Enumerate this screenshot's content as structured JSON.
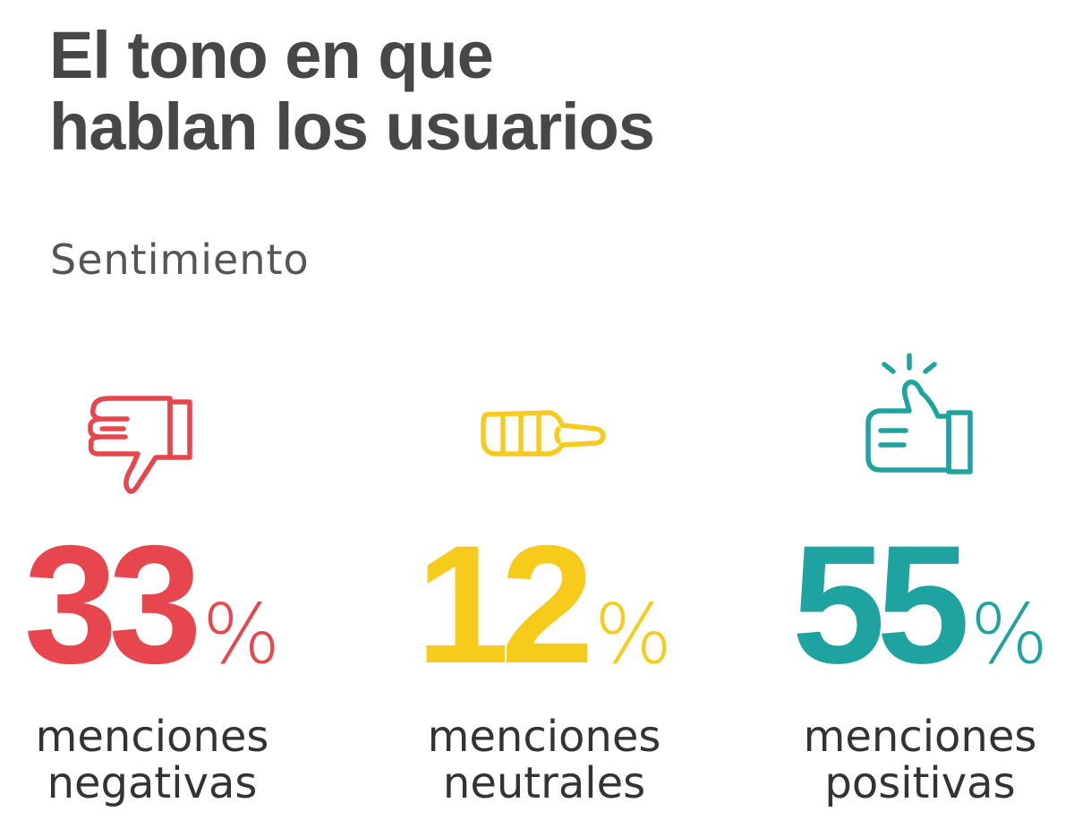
{
  "title": [
    "El tono en que",
    "hablan los usuarios"
  ],
  "subtitle": "Sentimiento",
  "chart_data": {
    "type": "table",
    "title": "El tono en que hablan los usuarios",
    "subtitle": "Sentimiento",
    "categories": [
      "negativas",
      "neutrales",
      "positivas"
    ],
    "series": [
      {
        "values": [
          33,
          12,
          55
        ]
      }
    ],
    "items": [
      {
        "id": "negative",
        "icon": "thumbs-down-icon",
        "value": 33,
        "value_text": "33",
        "unit": "%",
        "label_line1": "menciones",
        "label_line2": "negativas",
        "color": "#e8464f"
      },
      {
        "id": "neutral",
        "icon": "thumbs-sideways-icon",
        "value": 12,
        "value_text": "12",
        "unit": "%",
        "label_line1": "menciones",
        "label_line2": "neutrales",
        "color": "#f7cb1c"
      },
      {
        "id": "positive",
        "icon": "thumbs-up-icon",
        "value": 55,
        "value_text": "55",
        "unit": "%",
        "label_line1": "menciones",
        "label_line2": "positivas",
        "color": "#1fa3a0"
      }
    ]
  },
  "colors": {
    "title": "#474747",
    "subtitle": "#555555",
    "label": "#333333",
    "background": "#ffffff"
  }
}
